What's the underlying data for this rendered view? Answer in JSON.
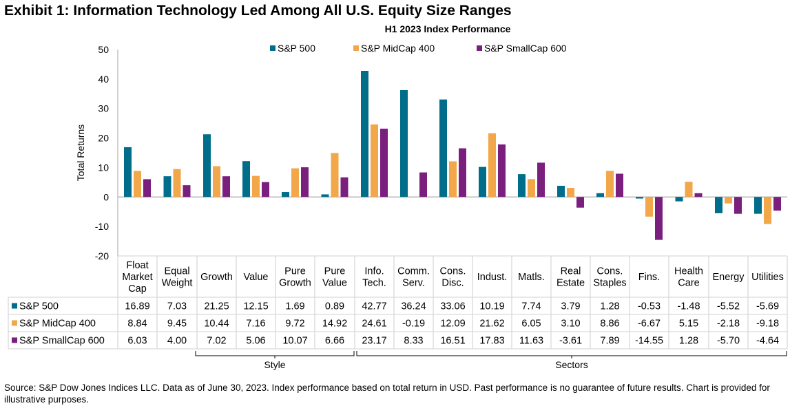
{
  "header": {
    "exhibit_title": "Exhibit 1: Information Technology Led Among All U.S. Equity Size Ranges"
  },
  "footer": {
    "source": "Source: S&P Dow Jones Indices LLC. Data as of June 30, 2023. Index performance based on total return in USD. Past performance is no guarantee of future results. Chart is provided for illustrative purposes."
  },
  "chart_data": {
    "type": "bar",
    "title": "H1 2023 Index Performance",
    "xlabel": "",
    "ylabel": "Total Returns",
    "ylim": [
      -20,
      50
    ],
    "yticks": [
      50,
      40,
      30,
      20,
      10,
      0,
      -10,
      -20
    ],
    "grid": false,
    "legend_position": "top-center",
    "categories": [
      [
        "Float",
        "Market",
        "Cap"
      ],
      [
        "Equal",
        "Weight"
      ],
      [
        "Growth"
      ],
      [
        "Value"
      ],
      [
        "Pure",
        "Growth"
      ],
      [
        "Pure",
        "Value"
      ],
      [
        "Info.",
        "Tech."
      ],
      [
        "Comm.",
        "Serv."
      ],
      [
        "Cons.",
        "Disc."
      ],
      [
        "Indust."
      ],
      [
        "Matls."
      ],
      [
        "Real",
        "Estate"
      ],
      [
        "Cons.",
        "Staples"
      ],
      [
        "Fins."
      ],
      [
        "Health",
        "Care"
      ],
      [
        "Energy"
      ],
      [
        "Utilities"
      ]
    ],
    "series": [
      {
        "name": "S&P 500",
        "color": "#006E8A",
        "values": [
          16.89,
          7.03,
          21.25,
          12.15,
          1.69,
          0.89,
          42.77,
          36.24,
          33.06,
          10.19,
          7.74,
          3.79,
          1.28,
          -0.53,
          -1.48,
          -5.52,
          -5.69
        ]
      },
      {
        "name": "S&P MidCap 400",
        "color": "#F2A74B",
        "values": [
          8.84,
          9.45,
          10.44,
          7.16,
          9.72,
          14.92,
          24.61,
          -0.19,
          12.09,
          21.62,
          6.05,
          3.1,
          8.86,
          -6.67,
          5.15,
          -2.18,
          -9.18
        ]
      },
      {
        "name": "S&P SmallCap 600",
        "color": "#7B1F7F",
        "values": [
          6.03,
          4.0,
          7.02,
          5.06,
          10.07,
          6.66,
          23.17,
          8.33,
          16.51,
          17.83,
          11.63,
          -3.61,
          7.89,
          -14.55,
          1.28,
          -5.7,
          -4.64
        ]
      }
    ],
    "table": {
      "display_values": [
        [
          "16.89",
          "7.03",
          "21.25",
          "12.15",
          "1.69",
          "0.89",
          "42.77",
          "36.24",
          "33.06",
          "10.19",
          "7.74",
          "3.79",
          "1.28",
          "-0.53",
          "-1.48",
          "-5.52",
          "-5.69"
        ],
        [
          "8.84",
          "9.45",
          "10.44",
          "7.16",
          "9.72",
          "14.92",
          "24.61",
          "-0.19",
          "12.09",
          "21.62",
          "6.05",
          "3.10",
          "8.86",
          "-6.67",
          "5.15",
          "-2.18",
          "-9.18"
        ],
        [
          "6.03",
          "4.00",
          "7.02",
          "5.06",
          "10.07",
          "6.66",
          "23.17",
          "8.33",
          "16.51",
          "17.83",
          "11.63",
          "-3.61",
          "7.89",
          "-14.55",
          "1.28",
          "-5.70",
          "-4.64"
        ]
      ]
    },
    "groups": [
      {
        "label": "Style",
        "from": 2,
        "to": 5
      },
      {
        "label": "Sectors",
        "from": 6,
        "to": 16
      }
    ]
  }
}
